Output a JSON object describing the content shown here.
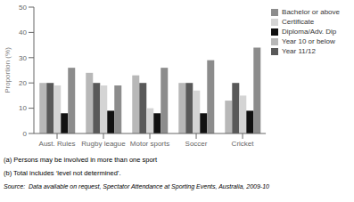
{
  "chart_data": {
    "type": "bar",
    "categories": [
      "Aust. Rules",
      "Rugby league",
      "Motor sports",
      "Soccer",
      "Cricket"
    ],
    "series": [
      {
        "name": "Year 10 or below",
        "color": "#b8b8b8",
        "values": [
          20,
          24,
          23,
          20,
          13
        ]
      },
      {
        "name": "Year 11/12",
        "color": "#595959",
        "values": [
          20,
          20,
          20,
          20,
          20
        ]
      },
      {
        "name": "Certificate",
        "color": "#d4d4d4",
        "values": [
          19,
          19,
          10,
          17,
          15
        ]
      },
      {
        "name": "Diploma/Adv. Dip",
        "color": "#111111",
        "values": [
          8,
          9,
          8,
          8,
          9
        ]
      },
      {
        "name": "Bachelor or above",
        "color": "#8c8c8c",
        "values": [
          26,
          19,
          26,
          29,
          34
        ]
      }
    ],
    "ylabel": "Proportion (%)",
    "ylim": [
      0,
      50
    ],
    "yticks": [
      0,
      10,
      20,
      30,
      40,
      50
    ],
    "grid": false,
    "legend": "upper right",
    "annotations": [
      "(a) Persons may be involved in more than one sport",
      "(b) Total includes ‘level not determined’.",
      "Source:  Data available on request, Spectator Attendance at Sporting Events, Australia, 2009-10"
    ]
  }
}
